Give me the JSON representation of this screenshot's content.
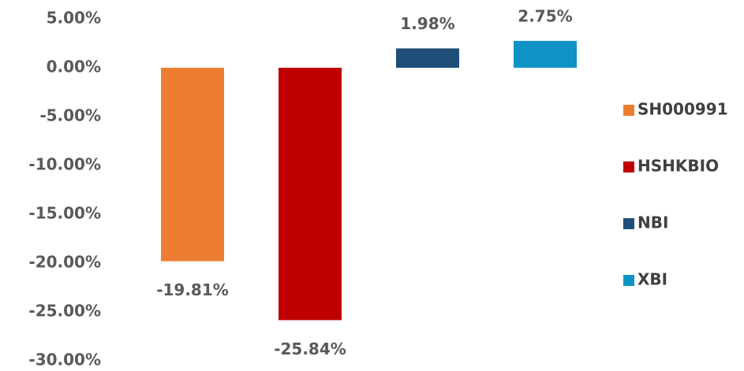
{
  "chart_data": {
    "type": "bar",
    "series": [
      {
        "name": "SH000991",
        "color": "#ed7d31",
        "values": [
          -19.81
        ],
        "value_labels": [
          "-19.81%"
        ]
      },
      {
        "name": "HSHKBIO",
        "color": "#c00000",
        "values": [
          -25.84
        ],
        "value_labels": [
          "-25.84%"
        ]
      },
      {
        "name": "NBI",
        "color": "#1f4e79",
        "values": [
          1.98
        ],
        "value_labels": [
          "1.98%"
        ]
      },
      {
        "name": "XBI",
        "color": "#0e93c4",
        "values": [
          2.75
        ],
        "value_labels": [
          "2.75%"
        ]
      }
    ],
    "ylim": [
      -30,
      5
    ],
    "yticks": [
      {
        "value": 5,
        "label": "5.00%"
      },
      {
        "value": 0,
        "label": "0.00%"
      },
      {
        "value": -5,
        "label": "-5.00%"
      },
      {
        "value": -10,
        "label": "-10.00%"
      },
      {
        "value": -15,
        "label": "-15.00%"
      },
      {
        "value": -20,
        "label": "-20.00%"
      },
      {
        "value": -25,
        "label": "-25.00%"
      },
      {
        "value": -30,
        "label": "-30.00%"
      }
    ],
    "grid": false,
    "legend": "right"
  }
}
